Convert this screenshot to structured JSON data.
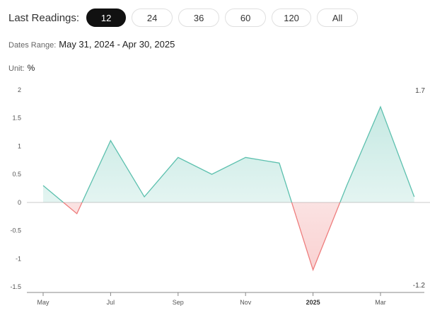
{
  "header": {
    "title": "Last Readings:",
    "periods": [
      "12",
      "24",
      "36",
      "60",
      "120",
      "All"
    ],
    "active_period": "12"
  },
  "range": {
    "label": "Dates Range:",
    "value": "May 31, 2024 - Apr 30, 2025"
  },
  "unit": {
    "label": "Unit:",
    "value": "%"
  },
  "colors": {
    "positive": "#5cc0ae",
    "negative": "#ee7d7d",
    "axis": "#888888",
    "zero": "#cccccc"
  },
  "chart_data": {
    "type": "area",
    "x": [
      "2024-05",
      "2024-06",
      "2024-07",
      "2024-08",
      "2024-09",
      "2024-10",
      "2024-11",
      "2024-12",
      "2025-01",
      "2025-02",
      "2025-03",
      "2025-04"
    ],
    "series": [
      {
        "values": [
          0.3,
          -0.2,
          1.1,
          0.1,
          0.8,
          0.5,
          0.8,
          0.7,
          -1.2,
          0.3,
          1.7,
          0.1
        ]
      }
    ],
    "ylim": [
      -1.5,
      2
    ],
    "y_ticks": [
      "2",
      "1.5",
      "1",
      "0.5",
      "0",
      "-0.5",
      "-1",
      "-1.5"
    ],
    "x_tick_labels": [
      {
        "index": 0,
        "label": "May"
      },
      {
        "index": 2,
        "label": "Jul"
      },
      {
        "index": 4,
        "label": "Sep"
      },
      {
        "index": 6,
        "label": "Nov"
      },
      {
        "index": 8,
        "label": "2025",
        "bold": true
      },
      {
        "index": 10,
        "label": "Mar"
      }
    ],
    "max_label": "1.7",
    "min_label": "-1.2",
    "grid": false
  }
}
